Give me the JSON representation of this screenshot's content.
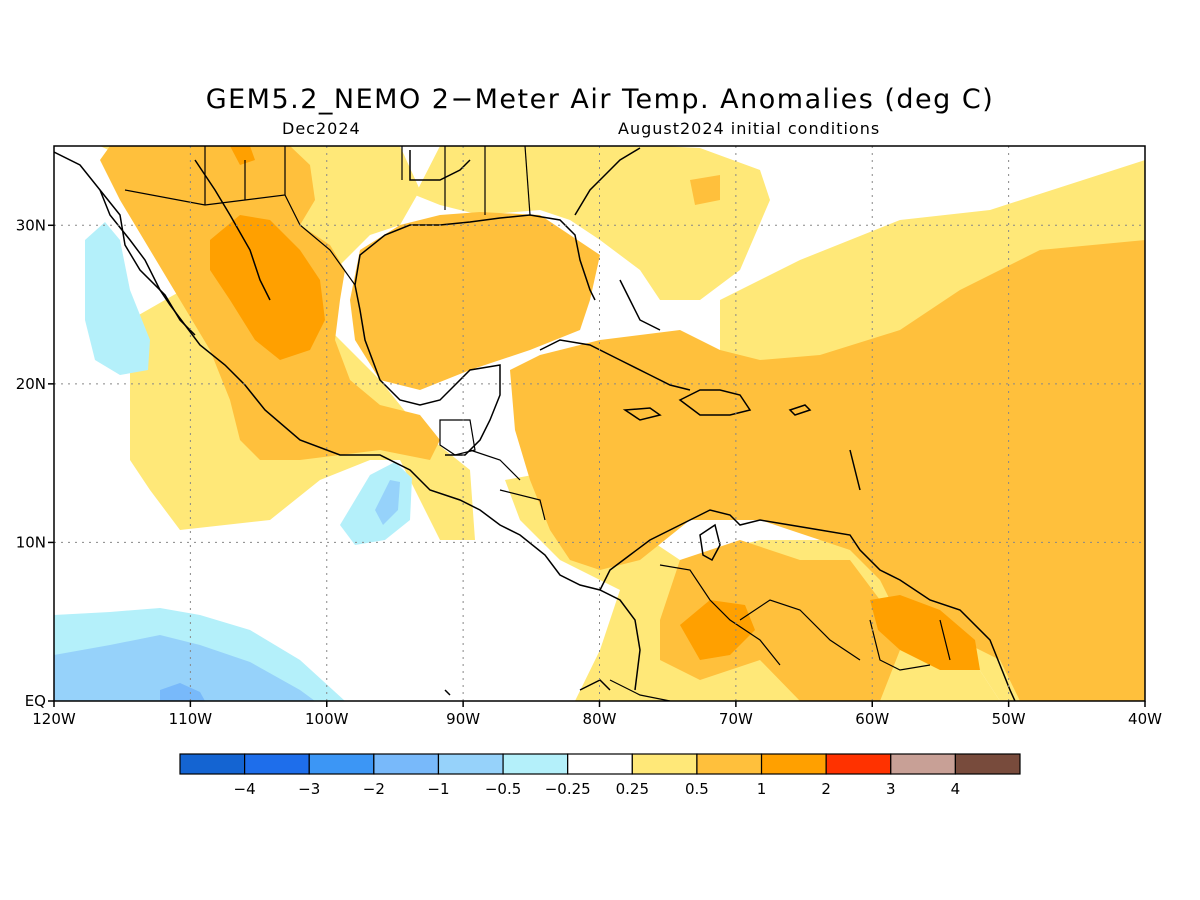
{
  "title": "GEM5.2_NEMO 2−Meter Air Temp. Anomalies (deg C)",
  "subtitle_left": "Dec2024",
  "subtitle_right": "August2024 initial conditions",
  "map": {
    "lon_range": [
      -120,
      -40
    ],
    "lat_range": [
      0,
      35
    ],
    "x_ticks": [
      {
        "lon": -120,
        "label": "120W"
      },
      {
        "lon": -110,
        "label": "110W"
      },
      {
        "lon": -100,
        "label": "100W"
      },
      {
        "lon": -90,
        "label": "90W"
      },
      {
        "lon": -80,
        "label": "80W"
      },
      {
        "lon": -70,
        "label": "70W"
      },
      {
        "lon": -60,
        "label": "60W"
      },
      {
        "lon": -50,
        "label": "50W"
      },
      {
        "lon": -40,
        "label": "40W"
      }
    ],
    "y_ticks": [
      {
        "lat": 0,
        "label": "EQ"
      },
      {
        "lat": 10,
        "label": "10N"
      },
      {
        "lat": 20,
        "label": "20N"
      },
      {
        "lat": 30,
        "label": "30N"
      }
    ],
    "grid": true,
    "colors": {
      "neg_025_05": "#b4f0fa",
      "neg_05_1": "#96d2fa",
      "neg_1_2": "#78b9fa",
      "pos_025_05": "#ffe878",
      "pos_05_1": "#ffc03c",
      "pos_1_2": "#ffa000",
      "coast": "#000000"
    }
  },
  "colorbar": {
    "colors": [
      "#1464d2",
      "#1e6eeb",
      "#3c96f5",
      "#78b9fa",
      "#96d2fa",
      "#b4f0fa",
      "#ffffff",
      "#ffe878",
      "#ffc03c",
      "#ffa000",
      "#ff3200",
      "#c8a096",
      "#784b3c"
    ],
    "labels": [
      "−4",
      "−3",
      "−2",
      "−1",
      "−0.5",
      "−0.25",
      "0.25",
      "0.5",
      "1",
      "2",
      "3",
      "4"
    ]
  }
}
